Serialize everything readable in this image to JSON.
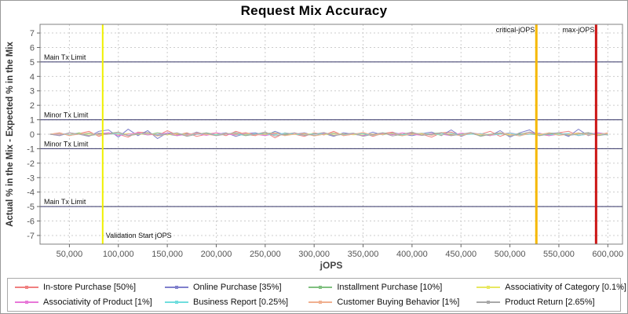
{
  "chart_data": {
    "type": "line",
    "title": "Request Mix Accuracy",
    "xlabel": "jOPS",
    "ylabel": "Actual % in the Mix - Expected % in the Mix",
    "xlim": [
      20000,
      615000
    ],
    "ylim": [
      -7.6,
      7.6
    ],
    "grid": true,
    "legend_position": "bottom",
    "colors": {
      "grid": "#cccccc",
      "frame": "#808080",
      "limit_line": "#333366",
      "tick_mark": "#666666"
    },
    "yticks": [
      -7,
      -6,
      -5,
      -4,
      -3,
      -2,
      -1,
      0,
      1,
      2,
      3,
      4,
      5,
      6,
      7
    ],
    "xticks": [
      {
        "v": 50000,
        "label": "50,000"
      },
      {
        "v": 100000,
        "label": "100,000"
      },
      {
        "v": 150000,
        "label": "150,000"
      },
      {
        "v": 200000,
        "label": "200,000"
      },
      {
        "v": 250000,
        "label": "250,000"
      },
      {
        "v": 300000,
        "label": "300,000"
      },
      {
        "v": 350000,
        "label": "350,000"
      },
      {
        "v": 400000,
        "label": "400,000"
      },
      {
        "v": 450000,
        "label": "450,000"
      },
      {
        "v": 500000,
        "label": "500,000"
      },
      {
        "v": 550000,
        "label": "550,000"
      },
      {
        "v": 600000,
        "label": "600,000"
      }
    ],
    "limit_lines": [
      {
        "y": 5,
        "label": "Main Tx Limit"
      },
      {
        "y": 1,
        "label": "Minor Tx Limit"
      },
      {
        "y": -1,
        "label": "Minor Tx Limit"
      },
      {
        "y": -5,
        "label": "Main Tx Limit"
      }
    ],
    "marker_lines": [
      {
        "name": "validation-start-jops",
        "x": 84000,
        "label": "Validation Start jOPS",
        "color": "#f0f000",
        "width": 2,
        "label_side": "right",
        "label_vpos": "bottom"
      },
      {
        "name": "critical-jops",
        "x": 527000,
        "label": "critical-jOPS",
        "color": "#f5b800",
        "width": 3,
        "label_side": "left",
        "label_vpos": "top"
      },
      {
        "name": "max-jops",
        "x": 588000,
        "label": "max-jOPS",
        "color": "#cc1414",
        "width": 3,
        "label_side": "left",
        "label_vpos": "top"
      }
    ],
    "x": [
      30000,
      40000,
      50000,
      60000,
      70000,
      80000,
      90000,
      100000,
      110000,
      120000,
      130000,
      140000,
      150000,
      160000,
      170000,
      180000,
      190000,
      200000,
      210000,
      220000,
      230000,
      240000,
      250000,
      260000,
      270000,
      280000,
      290000,
      300000,
      310000,
      320000,
      330000,
      340000,
      350000,
      360000,
      370000,
      380000,
      390000,
      400000,
      410000,
      420000,
      430000,
      440000,
      450000,
      460000,
      470000,
      480000,
      490000,
      500000,
      510000,
      520000,
      530000,
      540000,
      550000,
      560000,
      570000,
      580000,
      590000,
      600000
    ],
    "series": [
      {
        "name": "In-store Purchase [50%]",
        "color": "#f08080",
        "values": [
          0,
          0.1,
          -0.1,
          0.05,
          0.2,
          -0.15,
          0.1,
          0,
          -0.2,
          0.15,
          0.1,
          -0.1,
          0.25,
          -0.05,
          0.1,
          -0.15,
          0,
          0.1,
          -0.1,
          0.2,
          0,
          -0.1,
          0.15,
          -0.25,
          0.1,
          0,
          -0.15,
          0.1,
          -0.05,
          0.2,
          -0.1,
          0,
          0.1,
          -0.15,
          0.05,
          0.15,
          -0.1,
          0.1,
          0,
          -0.2,
          0.1,
          0.15,
          -0.1,
          0.05,
          0,
          0.2,
          -0.15,
          0.1,
          -0.05,
          0.15,
          0,
          -0.1,
          0.1,
          0.2,
          -0.1,
          0.05,
          -0.05,
          0.1
        ]
      },
      {
        "name": "Online Purchase [35%]",
        "color": "#8080cc",
        "values": [
          0,
          -0.1,
          0.1,
          0,
          -0.15,
          0.2,
          0.3,
          -0.2,
          0.35,
          -0.1,
          0.25,
          -0.3,
          0.1,
          0,
          -0.1,
          0.15,
          -0.05,
          0,
          0.1,
          -0.15,
          0.05,
          0.1,
          -0.1,
          0.2,
          -0.05,
          0,
          0.1,
          -0.1,
          0.05,
          -0.15,
          0.1,
          0,
          -0.1,
          0.15,
          -0.05,
          0.1,
          0,
          -0.1,
          0.05,
          0.15,
          -0.1,
          0.3,
          -0.15,
          0.1,
          0,
          -0.1,
          0.25,
          -0.2,
          0.1,
          0.3,
          -0.1,
          0.05,
          0.1,
          -0.15,
          0.35,
          -0.1,
          0.1,
          0
        ]
      },
      {
        "name": "Installment Purchase [10%]",
        "color": "#80c080",
        "values": [
          0,
          0.05,
          -0.05,
          0.1,
          -0.1,
          0,
          0.05,
          0.15,
          -0.1,
          0.05,
          -0.05,
          0.1,
          0,
          -0.1,
          0.05,
          0,
          0.1,
          -0.05,
          0,
          0.05,
          -0.1,
          0,
          0.05,
          0.1,
          -0.05,
          0,
          0.05,
          -0.1,
          0,
          0.1,
          -0.05,
          0.05,
          0,
          -0.05,
          0.1,
          0,
          -0.1,
          0.05,
          0,
          0.05,
          0.1,
          -0.05,
          0,
          0.05,
          -0.1,
          0,
          0.1,
          -0.05,
          0.05,
          0,
          -0.05,
          0.1,
          0,
          -0.05,
          0.05,
          0.1,
          0,
          -0.05
        ]
      },
      {
        "name": "Associativity of Category [0.1%]",
        "color": "#e8e860",
        "values": [
          0,
          0.02,
          -0.03,
          0.05,
          0,
          -0.05,
          0.03,
          0,
          0.05,
          -0.02,
          0.04,
          0,
          -0.04,
          0.02,
          0,
          0.05,
          -0.03,
          0,
          0.02,
          -0.05,
          0,
          0.03,
          -0.02,
          0,
          0.04,
          -0.03,
          0,
          0.05,
          -0.02,
          0,
          0.03,
          -0.04,
          0,
          0.02,
          -0.03,
          0.05,
          0,
          -0.02,
          0.03,
          0,
          -0.05,
          0.02,
          0,
          0.04,
          -0.02,
          0,
          0.03,
          -0.04,
          0,
          0.02,
          -0.03,
          0,
          0.05,
          -0.02,
          0.03,
          0,
          -0.04,
          0.02
        ]
      },
      {
        "name": "Associativity of Product [1%]",
        "color": "#e878d8",
        "values": [
          0,
          -0.05,
          0.08,
          0,
          -0.1,
          0.05,
          0.1,
          -0.08,
          0,
          0.1,
          -0.05,
          0,
          0.08,
          -0.1,
          0,
          0.05,
          -0.08,
          0.1,
          0,
          -0.05,
          0.08,
          0,
          -0.1,
          0.05,
          0,
          0.08,
          -0.05,
          0,
          0.1,
          -0.08,
          0,
          0.05,
          -0.1,
          0,
          0.08,
          -0.05,
          0.1,
          0,
          -0.08,
          0.05,
          0,
          -0.1,
          0.08,
          0,
          0.05,
          -0.08,
          0,
          0.1,
          -0.05,
          0,
          0.08,
          -0.1,
          0,
          0.05,
          -0.08,
          0,
          0.1,
          -0.05
        ]
      },
      {
        "name": "Business Report [0.25%]",
        "color": "#70dede",
        "values": [
          0,
          0.04,
          -0.04,
          0,
          0.06,
          -0.06,
          0,
          0.04,
          -0.08,
          0,
          0.06,
          -0.04,
          0,
          0.08,
          -0.06,
          0,
          0.04,
          -0.04,
          0.06,
          0,
          -0.06,
          0.04,
          0,
          -0.04,
          0.08,
          0,
          -0.06,
          0.04,
          0,
          0.06,
          -0.04,
          0,
          0.04,
          -0.08,
          0,
          0.06,
          -0.04,
          0,
          0.08,
          -0.04,
          0,
          0.06,
          -0.06,
          0,
          0.04,
          -0.04,
          0,
          0.08,
          -0.06,
          0,
          0.04,
          -0.04,
          0,
          0.06,
          -0.08,
          0,
          0.04,
          -0.04
        ]
      },
      {
        "name": "Customer Buying Behavior [1%]",
        "color": "#f0b090",
        "values": [
          0,
          0.06,
          -0.08,
          0,
          0.1,
          -0.06,
          0,
          0.12,
          -0.1,
          0,
          0.08,
          -0.12,
          0,
          0.06,
          -0.08,
          0.1,
          0,
          -0.1,
          0.06,
          0,
          0.12,
          -0.06,
          0,
          0.08,
          -0.1,
          0,
          0.06,
          -0.12,
          0,
          0.1,
          -0.08,
          0,
          0.12,
          -0.06,
          0,
          0.08,
          -0.1,
          0,
          0.06,
          -0.08,
          0.12,
          0,
          -0.1,
          0.08,
          0,
          -0.06,
          0.1,
          0,
          -0.12,
          0.06,
          0,
          0.08,
          -0.08,
          0,
          0.1,
          -0.06,
          0,
          0.08
        ]
      },
      {
        "name": "Product Return [2.65%]",
        "color": "#a8a8a8",
        "values": [
          0,
          -0.08,
          0.1,
          0,
          -0.12,
          0.08,
          0,
          0.15,
          -0.1,
          0,
          0.12,
          -0.08,
          0,
          0.1,
          -0.15,
          0,
          0.08,
          -0.1,
          0,
          0.12,
          -0.08,
          0,
          0.15,
          -0.12,
          0,
          0.1,
          -0.08,
          0,
          0.12,
          -0.1,
          0,
          0.08,
          -0.15,
          0,
          0.1,
          -0.12,
          0,
          0.15,
          -0.08,
          0,
          0.1,
          -0.1,
          0,
          0.12,
          -0.15,
          0,
          0.08,
          -0.12,
          0,
          0.15,
          -0.1,
          0,
          0.1,
          -0.08,
          0,
          0.12,
          -0.1,
          0
        ]
      }
    ]
  }
}
